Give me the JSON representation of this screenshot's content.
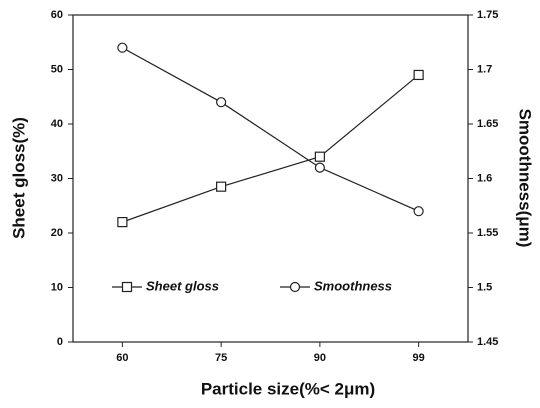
{
  "chart_data": {
    "type": "line",
    "categories": [
      "60",
      "75",
      "90",
      "99"
    ],
    "x_label": "Particle size(%< 2μm)",
    "y_label": "Sheet gloss(%)",
    "y2_label": "Smoothness(μm)",
    "series": [
      {
        "name": "Sheet gloss",
        "color": "#222222",
        "marker": "square",
        "values": [
          22,
          28.5,
          34,
          49
        ]
      },
      {
        "name": "Smoothness",
        "color": "#222222",
        "marker": "circle",
        "axis": "y2",
        "values": [
          1.72,
          1.67,
          1.61,
          1.57
        ]
      }
    ],
    "ylim": [
      0,
      60
    ],
    "yticks": [
      0,
      10,
      20,
      30,
      40,
      50,
      60
    ],
    "y2lim": [
      1.45,
      1.75
    ],
    "y2ticks": [
      1.45,
      1.5,
      1.55,
      1.6,
      1.65,
      1.7,
      1.75
    ],
    "grid": false,
    "legend": "lower center"
  }
}
